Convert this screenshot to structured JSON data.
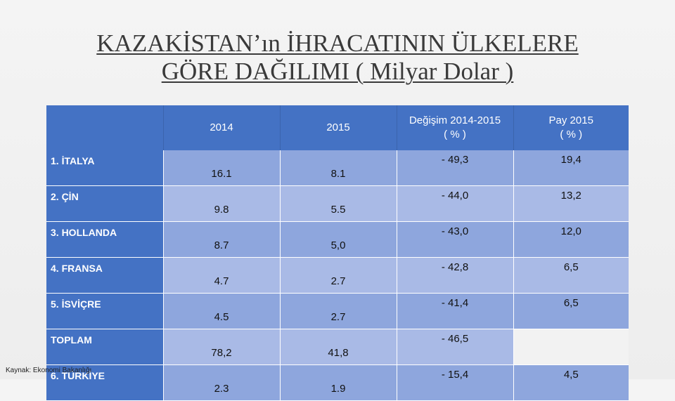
{
  "title": {
    "line1": "KAZAKİSTAN’ın İHRACATININ ÜLKELERE",
    "line2": "GÖRE DAĞILIMI ( Milyar Dolar )"
  },
  "table": {
    "headers": [
      "",
      "2014",
      "2015",
      "Değişim 2014-2015\n( % )",
      "Pay 2015\n( % )"
    ],
    "rows": [
      {
        "country": "1. İTALYA",
        "v2014": "16.1",
        "v2015": "8.1",
        "change": "- 49,3",
        "share": "19,4"
      },
      {
        "country": "2. ÇİN",
        "v2014": "9.8",
        "v2015": "5.5",
        "change": "- 44,0",
        "share": "13,2"
      },
      {
        "country": "3. HOLLANDA",
        "v2014": "8.7",
        "v2015": "5,0",
        "change": "- 43,0",
        "share": "12,0"
      },
      {
        "country": "4. FRANSA",
        "v2014": "4.7",
        "v2015": "2.7",
        "change": "- 42,8",
        "share": "6,5"
      },
      {
        "country": "5. İSVİÇRE",
        "v2014": "4.5",
        "v2015": "2.7",
        "change": "- 41,4",
        "share": "6,5"
      },
      {
        "country": "TOPLAM",
        "v2014": "78,2",
        "v2015": "41,8",
        "change": "- 46,5",
        "share": ""
      },
      {
        "country": "6. TÜRKİYE",
        "v2014": "2.3",
        "v2015": "1.9",
        "change": "- 15,4",
        "share": "4,5"
      }
    ]
  },
  "source": "Kaynak: Ekonomi Bakanlığı"
}
